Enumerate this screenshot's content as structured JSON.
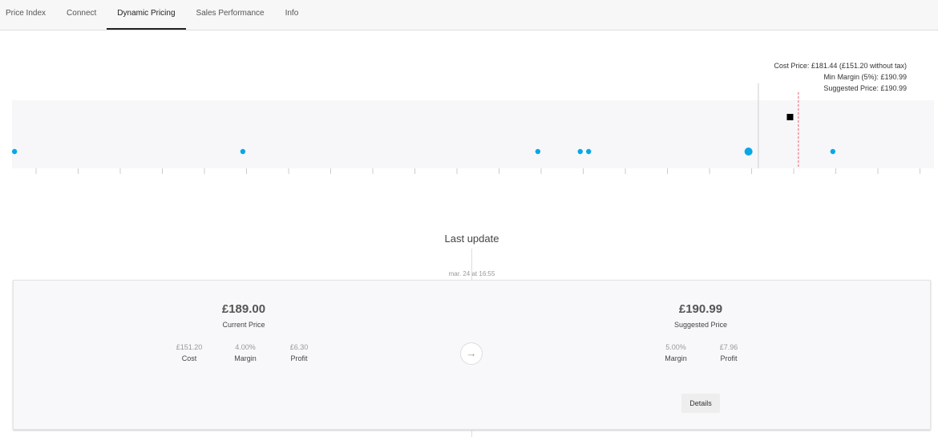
{
  "tabs": [
    {
      "label": "Price Index"
    },
    {
      "label": "Connect"
    },
    {
      "label": "Dynamic Pricing",
      "active": true
    },
    {
      "label": "Sales Performance"
    },
    {
      "label": "Info"
    }
  ],
  "chart_data": {
    "type": "scatter",
    "xlim": [
      3.6,
      223.3
    ],
    "tick_step": 10.03,
    "competitor_prices": [
      4.2,
      58.6,
      128.9,
      139.0,
      141.0,
      179.1,
      199.2
    ],
    "highlight_competitor": 179.1,
    "current_price": 189.0,
    "cost_price_line": 181.44,
    "suggested_price_line": 190.99,
    "annotations": [
      "Cost Price: £181.44 (£151.20 without tax)",
      "Min Margin (5%): £190.99",
      "Suggested Price: £190.99"
    ],
    "colors": {
      "point": "#0aa6e6",
      "current": "#000000",
      "suggested_line": "#f06070",
      "cost_line": "#dddddd",
      "band": "#f7f7f9"
    }
  },
  "last_update": {
    "title": "Last update",
    "date": "mar. 24 at 16:55"
  },
  "current": {
    "price": "£189.00",
    "label": "Current Price",
    "stats": [
      {
        "value": "£151.20",
        "label": "Cost"
      },
      {
        "value": "4.00%",
        "label": "Margin"
      },
      {
        "value": "£6.30",
        "label": "Profit"
      }
    ]
  },
  "suggested": {
    "price": "£190.99",
    "label": "Suggested Price",
    "stats": [
      {
        "value": "5.00%",
        "label": "Margin"
      },
      {
        "value": "£7.96",
        "label": "Profit"
      }
    ],
    "details_label": "Details"
  },
  "icons": {
    "arrow": "arrow-right-icon"
  }
}
